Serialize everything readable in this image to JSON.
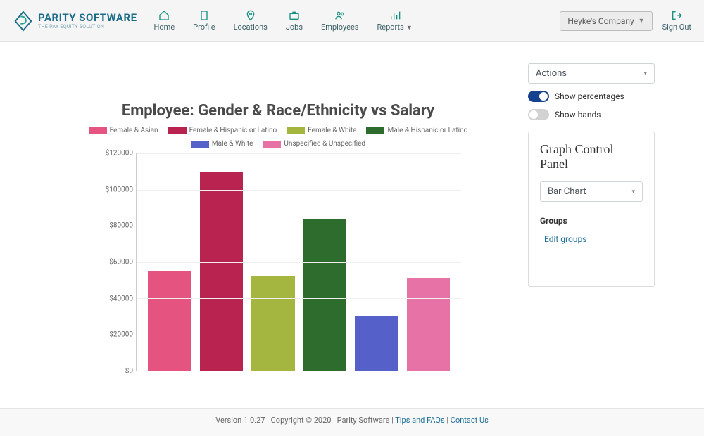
{
  "brand": {
    "name": "PARITY SOFTWARE",
    "tagline": "THE PAY EQUITY SOLUTION"
  },
  "nav": {
    "items": [
      {
        "label": "Home"
      },
      {
        "label": "Profile"
      },
      {
        "label": "Locations"
      },
      {
        "label": "Jobs"
      },
      {
        "label": "Employees"
      },
      {
        "label": "Reports",
        "has_caret": true
      }
    ]
  },
  "topbar": {
    "company": "Heyke's Company",
    "signout": "Sign Out"
  },
  "sidepanel": {
    "actions_select": "Actions",
    "toggle_percentages": {
      "label": "Show percentages",
      "on": true
    },
    "toggle_bands": {
      "label": "Show bands",
      "on": false
    },
    "panel_title": "Graph Control Panel",
    "chart_type_select": "Bar Chart",
    "groups_heading": "Groups",
    "edit_groups": "Edit groups"
  },
  "chart": {
    "type": "bar",
    "title": "Employee: Gender & Race/Ethnicity vs Salary",
    "title_fontsize": 22,
    "categories": [
      "Female & Asian",
      "Female & Hispanic or Latino",
      "Female & White",
      "Male & Hispanic or Latino",
      "Male & White",
      "Unspecified & Unspecified"
    ],
    "values": [
      55000,
      110000,
      52000,
      84000,
      30000,
      51000
    ],
    "bar_colors": [
      "#e55381",
      "#b8234f",
      "#a4b63f",
      "#2e6c2e",
      "#5560c8",
      "#e772a6"
    ],
    "y_ticks": [
      0,
      20000,
      40000,
      60000,
      80000,
      100000,
      120000
    ],
    "y_tick_labels": [
      "$0",
      "$20000",
      "$40000",
      "$60000",
      "$80000",
      "$100000",
      "$120000"
    ],
    "ylim": [
      0,
      120000
    ],
    "grid_color": "#efefef",
    "axis_color": "#cccccc",
    "label_fontsize": 10,
    "background_color": "#ffffff"
  },
  "footer": {
    "version_text": "Version 1.0.27 | Copyright © 2020 | Parity Software | ",
    "tips_link": "Tips and FAQs",
    "sep": " | ",
    "contact_link": "Contact Us"
  }
}
